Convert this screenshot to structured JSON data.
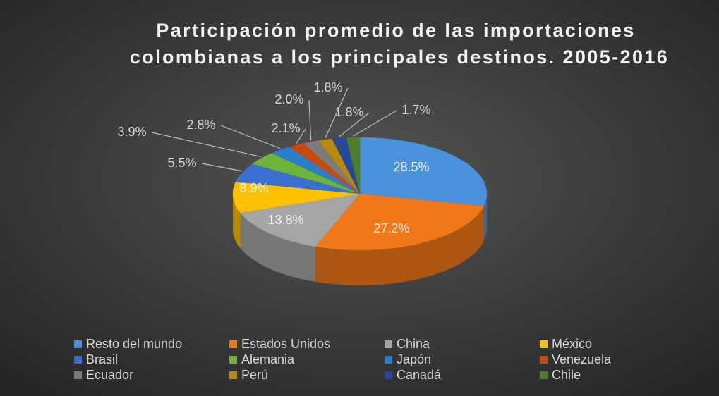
{
  "chart_data": {
    "type": "pie3d",
    "title": "Participación promedio de las importaciones colombianas a los principales destinos. 2005-2016",
    "categories": [
      "Resto del mundo",
      "Estados Unidos",
      "China",
      "México",
      "Brasil",
      "Alemania",
      "Japón",
      "Venezuela",
      "Ecuador",
      "Perú",
      "Canadá",
      "Chile"
    ],
    "values": [
      28.5,
      27.2,
      13.8,
      8.9,
      5.5,
      3.9,
      2.8,
      2.1,
      2.0,
      1.8,
      1.8,
      1.7
    ],
    "value_labels": [
      "28.5%",
      "27.2%",
      "13.8%",
      "8.9%",
      "5.5%",
      "3.9%",
      "2.8%",
      "2.1%",
      "2.0%",
      "1.8%",
      "1.8%",
      "1.7%"
    ],
    "colors": [
      "#4a92dc",
      "#f07818",
      "#a5a5a5",
      "#ffc000",
      "#3a6fd0",
      "#6db33a",
      "#2b7fc9",
      "#c94a0c",
      "#7c7c7c",
      "#b8890a",
      "#27489a",
      "#4e7d2c"
    ],
    "legend": "bottom"
  }
}
